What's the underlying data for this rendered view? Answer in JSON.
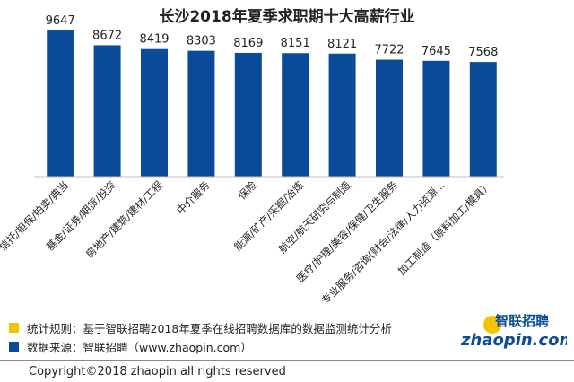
{
  "chart_data": {
    "type": "bar",
    "title": "长沙2018年夏季求职期十大高薪行业",
    "categories": [
      "信托/担保/拍卖/典当",
      "基金/证券/期货/投资",
      "房地产/建筑/建材/工程",
      "中介服务",
      "保险",
      "能源/矿产/采掘/冶炼",
      "航空/航天研究与制造",
      "医疗/护理/美容/保健/卫生服务",
      "专业服务/咨询(财会/法律/人力资源...",
      "加工制造（原料加工/模具）"
    ],
    "values": [
      9647,
      8672,
      8419,
      8303,
      8169,
      8151,
      8121,
      7722,
      7645,
      7568
    ],
    "data_labels": [
      "9647",
      "8672",
      "8419",
      "8303",
      "8169",
      "8151",
      "8121",
      "7722",
      "7645",
      "7568"
    ],
    "bar_color": "#0b4c9a",
    "ylim": [
      0,
      10000
    ],
    "grid": false,
    "xlabel": "",
    "ylabel": ""
  },
  "notes": {
    "rule": "统计规则：基于智联招聘2018年夏季在线招聘数据库的数据监测统计分析",
    "rule_color": "#f5c400",
    "source": "数据来源：智联招聘（www.zhaopin.com）",
    "source_color": "#0b4c9a"
  },
  "logo": {
    "cn": "智联招聘",
    "en": "zhaopin.com"
  },
  "copyright": "Copyright©2018 zhaopin all rights reserved"
}
